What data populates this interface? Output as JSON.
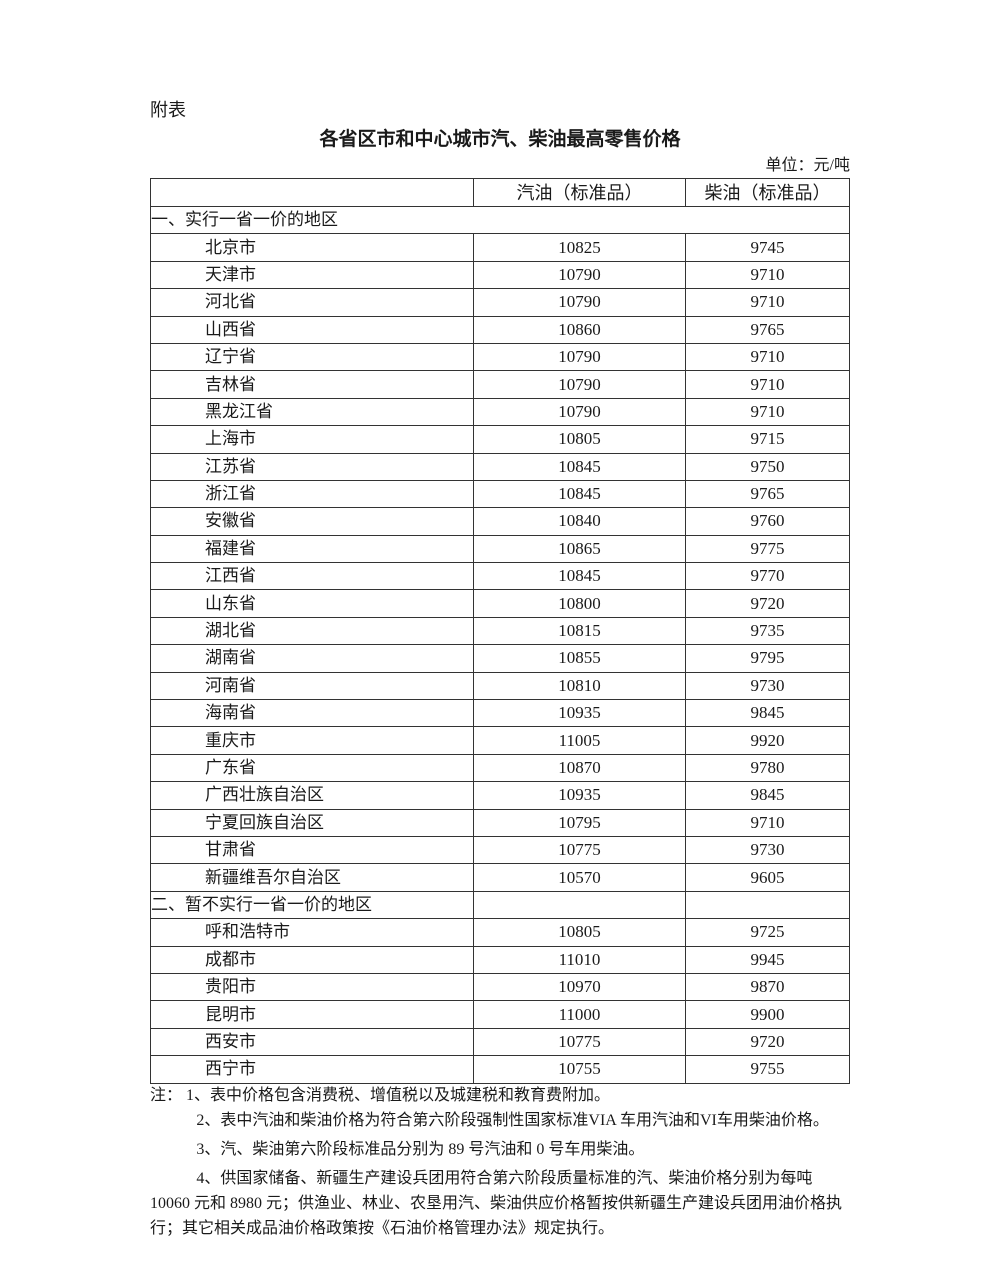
{
  "attachment_label": "附表",
  "title": "各省区市和中心城市汽、柴油最高零售价格",
  "unit": "单位：元/吨",
  "table": {
    "headers": [
      "",
      "汽油（标准品）",
      "柴油（标准品）"
    ],
    "sections": [
      {
        "label": "一、实行一省一价的地区",
        "rows": [
          [
            "北京市",
            "10825",
            "9745"
          ],
          [
            "天津市",
            "10790",
            "9710"
          ],
          [
            "河北省",
            "10790",
            "9710"
          ],
          [
            "山西省",
            "10860",
            "9765"
          ],
          [
            "辽宁省",
            "10790",
            "9710"
          ],
          [
            "吉林省",
            "10790",
            "9710"
          ],
          [
            "黑龙江省",
            "10790",
            "9710"
          ],
          [
            "上海市",
            "10805",
            "9715"
          ],
          [
            "江苏省",
            "10845",
            "9750"
          ],
          [
            "浙江省",
            "10845",
            "9765"
          ],
          [
            "安徽省",
            "10840",
            "9760"
          ],
          [
            "福建省",
            "10865",
            "9775"
          ],
          [
            "江西省",
            "10845",
            "9770"
          ],
          [
            "山东省",
            "10800",
            "9720"
          ],
          [
            "湖北省",
            "10815",
            "9735"
          ],
          [
            "湖南省",
            "10855",
            "9795"
          ],
          [
            "河南省",
            "10810",
            "9730"
          ],
          [
            "海南省",
            "10935",
            "9845"
          ],
          [
            "重庆市",
            "11005",
            "9920"
          ],
          [
            "广东省",
            "10870",
            "9780"
          ],
          [
            "广西壮族自治区",
            "10935",
            "9845"
          ],
          [
            "宁夏回族自治区",
            "10795",
            "9710"
          ],
          [
            "甘肃省",
            "10775",
            "9730"
          ],
          [
            "新疆维吾尔自治区",
            "10570",
            "9605"
          ]
        ]
      },
      {
        "label": "二、暂不实行一省一价的地区",
        "rows": [
          [
            "呼和浩特市",
            "10805",
            "9725"
          ],
          [
            "成都市",
            "11010",
            "9945"
          ],
          [
            "贵阳市",
            "10970",
            "9870"
          ],
          [
            "昆明市",
            "11000",
            "9900"
          ],
          [
            "西安市",
            "10775",
            "9720"
          ],
          [
            "西宁市",
            "10755",
            "9755"
          ]
        ]
      }
    ]
  },
  "notes": [
    "注：  1、表中价格包含消费税、增值税以及城建税和教育费附加。",
    "2、表中汽油和柴油价格为符合第六阶段强制性国家标准VIA 车用汽油和VI车用柴油价格。",
    "3、汽、柴油第六阶段标准品分别为 89 号汽油和 0 号车用柴油。",
    "4、供国家储备、新疆生产建设兵团用符合第六阶段质量标准的汽、柴油价格分别为每吨 10060 元和 8980 元；供渔业、林业、农垦用汽、柴油供应价格暂按供新疆生产建设兵团用油价格执行；其它相关成品油价格政策按《石油价格管理办法》规定执行。"
  ]
}
